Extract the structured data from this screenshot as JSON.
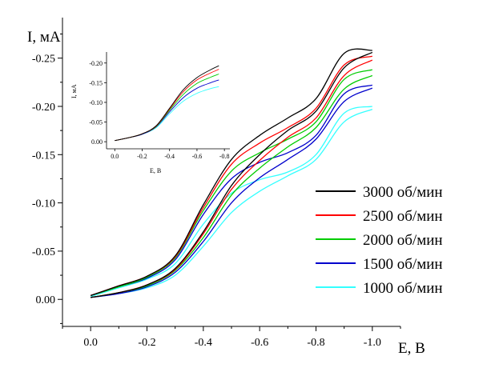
{
  "chart_data": [
    {
      "type": "line",
      "role": "main",
      "xlabel": "E, В",
      "ylabel": "I, мА",
      "xlim": [
        0.1,
        -1.1
      ],
      "ylim": [
        0.028,
        -0.292
      ],
      "x_ticks": [
        0.0,
        -0.2,
        -0.4,
        -0.6,
        -0.8,
        -1.0
      ],
      "x_tick_labels": [
        "0.0",
        "-0.2",
        "-0.4",
        "-0.6",
        "-0.8",
        "-1.0"
      ],
      "y_ticks": [
        0.0,
        -0.05,
        -0.1,
        -0.15,
        -0.2,
        -0.25
      ],
      "y_tick_labels": [
        "0.00",
        "-0.05",
        "-0.10",
        "-0.15",
        "-0.20",
        "-0.25"
      ],
      "grid": false,
      "legend_position": "right",
      "series": [
        {
          "name": "3000 об/мин",
          "color": "#000000",
          "forward": {
            "x": [
              0,
              -0.1,
              -0.2,
              -0.3,
              -0.4,
              -0.5,
              -0.6,
              -0.7,
              -0.8,
              -0.9,
              -1.0
            ],
            "y": [
              -0.004,
              -0.014,
              -0.024,
              -0.045,
              -0.098,
              -0.145,
              -0.17,
              -0.188,
              -0.208,
              -0.255,
              -0.258
            ]
          },
          "reverse": {
            "x": [
              -1.0,
              -0.9,
              -0.8,
              -0.7,
              -0.6,
              -0.5,
              -0.4,
              -0.3,
              -0.2,
              -0.1,
              0
            ],
            "y": [
              -0.256,
              -0.24,
              -0.195,
              -0.175,
              -0.15,
              -0.118,
              -0.07,
              -0.032,
              -0.015,
              -0.007,
              -0.002
            ]
          }
        },
        {
          "name": "2500 об/мин",
          "color": "#ff0000",
          "forward": {
            "x": [
              0,
              -0.1,
              -0.2,
              -0.3,
              -0.4,
              -0.5,
              -0.6,
              -0.7,
              -0.8,
              -0.9,
              -1.0
            ],
            "y": [
              -0.004,
              -0.014,
              -0.024,
              -0.044,
              -0.095,
              -0.14,
              -0.162,
              -0.178,
              -0.198,
              -0.243,
              -0.252
            ]
          },
          "reverse": {
            "x": [
              -1.0,
              -0.9,
              -0.8,
              -0.7,
              -0.6,
              -0.5,
              -0.4,
              -0.3,
              -0.2,
              -0.1,
              0
            ],
            "y": [
              -0.248,
              -0.232,
              -0.188,
              -0.168,
              -0.144,
              -0.114,
              -0.068,
              -0.031,
              -0.015,
              -0.007,
              -0.002
            ]
          }
        },
        {
          "name": "2000 об/мин",
          "color": "#00cc00",
          "forward": {
            "x": [
              0,
              -0.1,
              -0.2,
              -0.3,
              -0.4,
              -0.5,
              -0.6,
              -0.7,
              -0.8,
              -0.9,
              -1.0
            ],
            "y": [
              -0.004,
              -0.013,
              -0.023,
              -0.043,
              -0.092,
              -0.133,
              -0.152,
              -0.166,
              -0.184,
              -0.228,
              -0.238
            ]
          },
          "reverse": {
            "x": [
              -1.0,
              -0.9,
              -0.8,
              -0.7,
              -0.6,
              -0.5,
              -0.4,
              -0.3,
              -0.2,
              -0.1,
              0
            ],
            "y": [
              -0.232,
              -0.218,
              -0.178,
              -0.158,
              -0.136,
              -0.108,
              -0.064,
              -0.03,
              -0.014,
              -0.007,
              -0.002
            ]
          }
        },
        {
          "name": "1500 об/мин",
          "color": "#0000cc",
          "forward": {
            "x": [
              0,
              -0.1,
              -0.2,
              -0.3,
              -0.4,
              -0.5,
              -0.6,
              -0.7,
              -0.8,
              -0.9,
              -1.0
            ],
            "y": [
              -0.004,
              -0.013,
              -0.022,
              -0.041,
              -0.088,
              -0.125,
              -0.142,
              -0.152,
              -0.17,
              -0.213,
              -0.222
            ]
          },
          "reverse": {
            "x": [
              -1.0,
              -0.9,
              -0.8,
              -0.7,
              -0.6,
              -0.5,
              -0.4,
              -0.3,
              -0.2,
              -0.1,
              0
            ],
            "y": [
              -0.219,
              -0.205,
              -0.166,
              -0.145,
              -0.126,
              -0.1,
              -0.06,
              -0.028,
              -0.013,
              -0.006,
              -0.002
            ]
          }
        },
        {
          "name": "1000 об/мин",
          "color": "#33ffff",
          "forward": {
            "x": [
              0,
              -0.1,
              -0.2,
              -0.3,
              -0.4,
              -0.5,
              -0.6,
              -0.7,
              -0.8,
              -0.9,
              -1.0
            ],
            "y": [
              -0.003,
              -0.012,
              -0.021,
              -0.037,
              -0.078,
              -0.11,
              -0.124,
              -0.132,
              -0.15,
              -0.193,
              -0.2
            ]
          },
          "reverse": {
            "x": [
              -1.0,
              -0.9,
              -0.8,
              -0.7,
              -0.6,
              -0.5,
              -0.4,
              -0.3,
              -0.2,
              -0.1,
              0
            ],
            "y": [
              -0.197,
              -0.184,
              -0.145,
              -0.128,
              -0.112,
              -0.09,
              -0.055,
              -0.025,
              -0.012,
              -0.006,
              -0.002
            ]
          }
        }
      ]
    },
    {
      "type": "line",
      "role": "inset",
      "xlabel": "E, B",
      "ylabel": "I, мА",
      "xlim": [
        0.06,
        -0.84
      ],
      "ylim": [
        0.018,
        -0.228
      ],
      "x_ticks": [
        0.0,
        -0.2,
        -0.4,
        -0.6,
        -0.8
      ],
      "x_tick_labels": [
        "0.0",
        "-0.2",
        "-0.4",
        "-0.6",
        "-0.8"
      ],
      "y_ticks": [
        0.0,
        -0.05,
        -0.1,
        -0.15,
        -0.2
      ],
      "y_tick_labels": [
        "0.00",
        "-0.05",
        "-0.10",
        "-0.15",
        "-0.20"
      ],
      "grid": false,
      "series": [
        {
          "color": "#000000",
          "x": [
            0,
            -0.1,
            -0.2,
            -0.3,
            -0.4,
            -0.5,
            -0.6,
            -0.7,
            -0.76
          ],
          "y": [
            -0.003,
            -0.01,
            -0.02,
            -0.04,
            -0.085,
            -0.132,
            -0.163,
            -0.183,
            -0.193
          ]
        },
        {
          "color": "#ff0000",
          "x": [
            0,
            -0.1,
            -0.2,
            -0.3,
            -0.4,
            -0.5,
            -0.6,
            -0.7,
            -0.76
          ],
          "y": [
            -0.003,
            -0.01,
            -0.02,
            -0.039,
            -0.083,
            -0.127,
            -0.157,
            -0.175,
            -0.184
          ]
        },
        {
          "color": "#00cc00",
          "x": [
            0,
            -0.1,
            -0.2,
            -0.3,
            -0.4,
            -0.5,
            -0.6,
            -0.7,
            -0.76
          ],
          "y": [
            -0.003,
            -0.01,
            -0.02,
            -0.038,
            -0.08,
            -0.12,
            -0.148,
            -0.164,
            -0.172
          ]
        },
        {
          "color": "#0000cc",
          "x": [
            0,
            -0.1,
            -0.2,
            -0.3,
            -0.4,
            -0.5,
            -0.6,
            -0.7,
            -0.76
          ],
          "y": [
            -0.003,
            -0.01,
            -0.019,
            -0.037,
            -0.076,
            -0.112,
            -0.136,
            -0.15,
            -0.157
          ]
        },
        {
          "color": "#33ffff",
          "x": [
            0,
            -0.1,
            -0.2,
            -0.3,
            -0.4,
            -0.5,
            -0.6,
            -0.7,
            -0.76
          ],
          "y": [
            -0.003,
            -0.01,
            -0.019,
            -0.035,
            -0.071,
            -0.103,
            -0.123,
            -0.135,
            -0.14
          ]
        }
      ]
    }
  ]
}
